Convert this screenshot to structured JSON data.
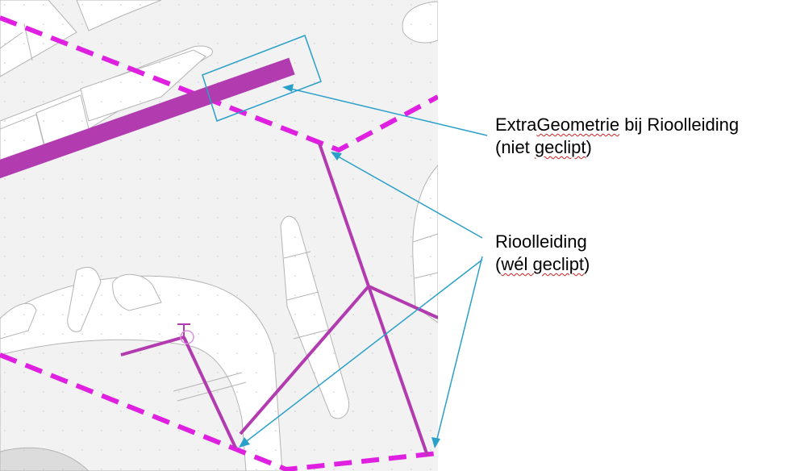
{
  "annotations": {
    "extra_geometry": {
      "line1_pre": "Extra",
      "line1_spell": "Geometrie",
      "line1_post": " bij Rioolleiding",
      "line2_pre": "(niet ",
      "line2_spell": "geclipt",
      "line2_post": ")"
    },
    "rioolleiding": {
      "line1": "Rioolleiding",
      "line2_pre": "(",
      "line2_spell": "wél geclipt",
      "line2_post": ")"
    }
  },
  "colors": {
    "map_background": "#f2f2f2",
    "map_outline": "#b4b4b4",
    "feature_magenta": "#b23bb0",
    "clip_boundary": "#e020e0",
    "callout_line": "#2a9fc8",
    "spelling_underline": "#d02020"
  }
}
